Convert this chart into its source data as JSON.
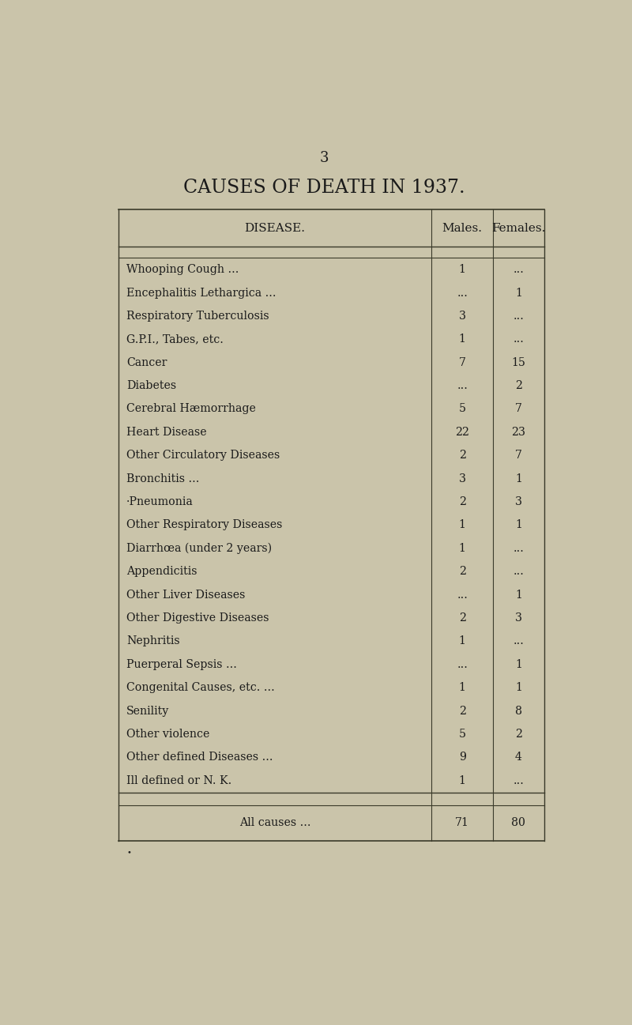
{
  "page_number": "3",
  "title": "CAUSES OF DEATH IN 1937.",
  "col_headers": [
    "DISEASE.",
    "Males.",
    "Females."
  ],
  "rows": [
    [
      "Whooping Cough ...",
      "1",
      "..."
    ],
    [
      "Encephalitis Lethargica ...",
      "...",
      "1"
    ],
    [
      "Respiratory Tuberculosis",
      "3",
      "..."
    ],
    [
      "G.P.I., Tabes, etc.",
      "1",
      "..."
    ],
    [
      "Cancer",
      "7",
      "15"
    ],
    [
      "Diabetes",
      "...",
      "2"
    ],
    [
      "Cerebral Hæmorrhage",
      "5",
      "7"
    ],
    [
      "Heart Disease",
      "22",
      "23"
    ],
    [
      "Other Circulatory Diseases",
      "2",
      "7"
    ],
    [
      "Bronchitis ...",
      "3",
      "1"
    ],
    [
      "·Pneumonia",
      "2",
      "3"
    ],
    [
      "Other Respiratory Diseases",
      "1",
      "1"
    ],
    [
      "Diarrhœa (under 2 years)",
      "1",
      "..."
    ],
    [
      "Appendicitis",
      "2",
      "..."
    ],
    [
      "Other Liver Diseases",
      "...",
      "1"
    ],
    [
      "Other Digestive Diseases",
      "2",
      "3"
    ],
    [
      "Nephritis",
      "1",
      "..."
    ],
    [
      "Puerperal Sepsis ...",
      "...",
      "1"
    ],
    [
      "Congenital Causes, etc. ...",
      "1",
      "1"
    ],
    [
      "Senility",
      "2",
      "8"
    ],
    [
      "Other violence",
      "5",
      "2"
    ],
    [
      "Other defined Diseases ...",
      "9",
      "4"
    ],
    [
      "Ill defined or N. K.",
      "1",
      "..."
    ]
  ],
  "total_row": [
    "All causes ...",
    "71",
    "80"
  ],
  "background_color": "#cac4aa",
  "text_color": "#1a1a1a",
  "line_color": "#3a3a2a",
  "title_fontsize": 17,
  "header_fontsize": 11,
  "row_fontsize": 10.2,
  "page_num_fontsize": 13
}
